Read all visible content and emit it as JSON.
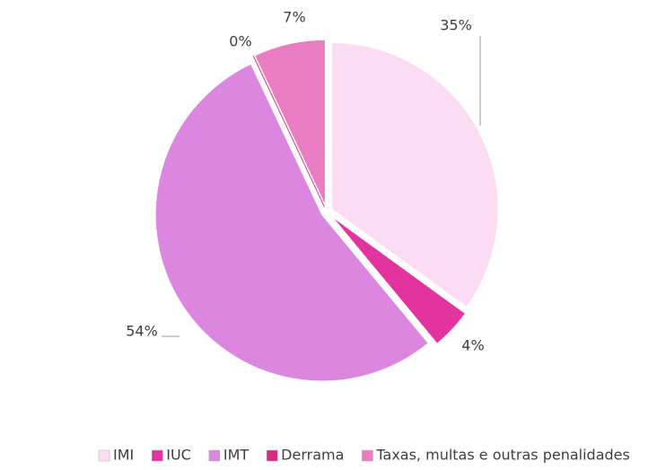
{
  "chart_data": {
    "type": "pie",
    "categories": [
      "IMI",
      "IUC",
      "IMT",
      "Derrama",
      "Taxas, multas e outras penalidades"
    ],
    "values": [
      35,
      4,
      54,
      0,
      7
    ],
    "value_labels": [
      "35%",
      "4%",
      "54%",
      "0%",
      "7%"
    ],
    "colors": [
      "#fcdcf3",
      "#e2339f",
      "#db87e0",
      "#d62a83",
      "#e87dc2"
    ],
    "legend": "bottom"
  }
}
